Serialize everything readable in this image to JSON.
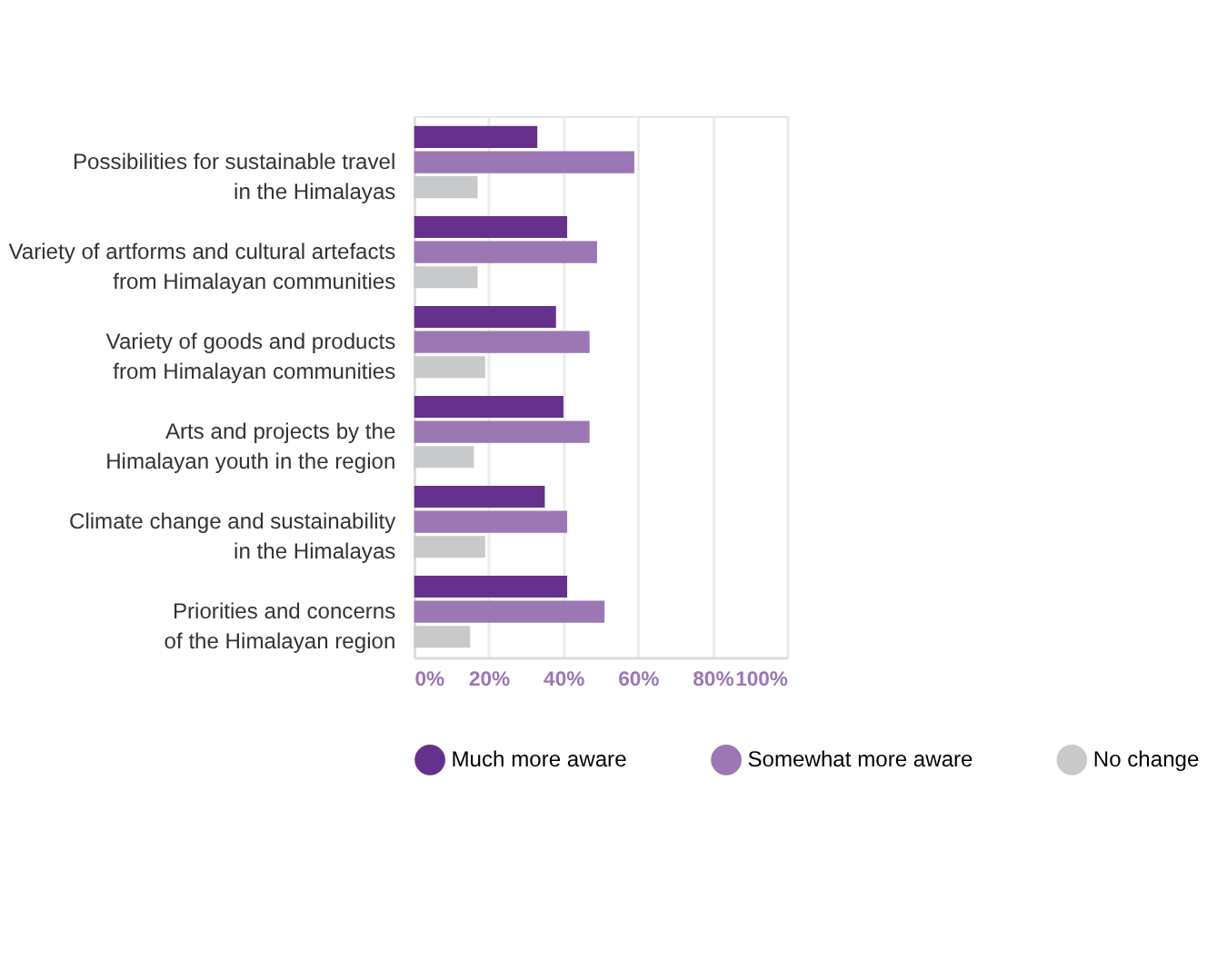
{
  "chart_data": {
    "type": "bar",
    "orientation": "horizontal",
    "categories": [
      "Possibilities for sustainable travel\nin the Himalayas",
      "Variety of artforms and cultural artefacts\nfrom Himalayan communities",
      "Variety of goods and products\nfrom Himalayan communities",
      "Arts and projects by the\nHimalayan youth in the region",
      "Climate change and sustainability\nin the Himalayas",
      "Priorities and concerns\nof the Himalayan region"
    ],
    "series": [
      {
        "name": "Much more aware",
        "color": "#65318d",
        "values": [
          33,
          41,
          38,
          40,
          35,
          41
        ]
      },
      {
        "name": "Somewhat more aware",
        "color": "#9b77b4",
        "values": [
          59,
          49,
          47,
          47,
          41,
          51
        ]
      },
      {
        "name": "No change",
        "color": "#c8c9cb",
        "values": [
          17,
          17,
          19,
          16,
          19,
          15
        ]
      }
    ],
    "xlim": [
      0,
      100
    ],
    "xticks": [
      {
        "value": 0,
        "label": "0%"
      },
      {
        "value": 20,
        "label": "20%"
      },
      {
        "value": 40,
        "label": "40%"
      },
      {
        "value": 60,
        "label": "60%"
      },
      {
        "value": 80,
        "label": "80%"
      },
      {
        "value": 100,
        "label": "100%"
      }
    ],
    "grid": "x",
    "legend": "bottom"
  }
}
